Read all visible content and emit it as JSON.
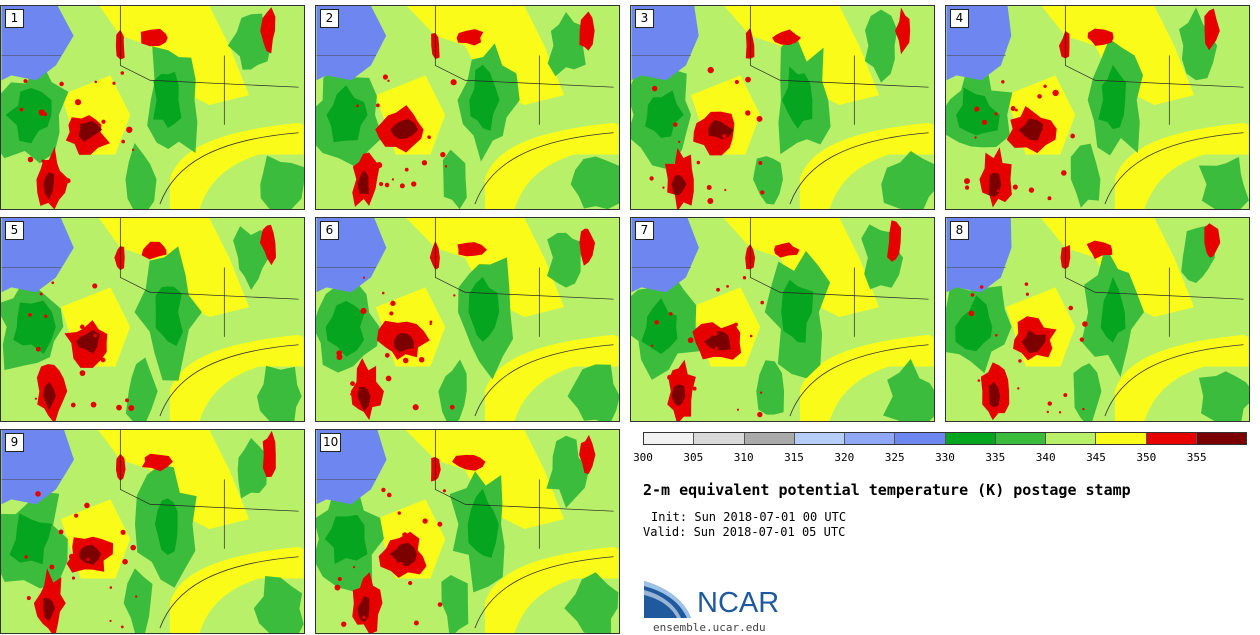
{
  "panels": [
    {
      "label": "1"
    },
    {
      "label": "2"
    },
    {
      "label": "3"
    },
    {
      "label": "4"
    },
    {
      "label": "5"
    },
    {
      "label": "6"
    },
    {
      "label": "7"
    },
    {
      "label": "8"
    },
    {
      "label": "9"
    },
    {
      "label": "10"
    }
  ],
  "colorbar": {
    "colors": [
      "#f2f2f2",
      "#d9d9d9",
      "#aaaaaa",
      "#b5cdf7",
      "#8fa8f5",
      "#6e87f0",
      "#05a51f",
      "#3cbc3d",
      "#b8f06a",
      "#fbfb1a",
      "#e60000",
      "#7d0000"
    ],
    "ticks": [
      "300",
      "305",
      "310",
      "315",
      "320",
      "325",
      "330",
      "335",
      "340",
      "345",
      "350",
      "355"
    ]
  },
  "title": "2-m equivalent potential temperature (K) postage stamp",
  "init": "Init: Sun 2018-07-01 00 UTC",
  "valid": "Valid: Sun 2018-07-01 05 UTC",
  "logo": {
    "text": "NCAR",
    "site": "ensemble.ucar.edu",
    "brand_color": "#1f5a9e"
  },
  "palette": {
    "cold_blue": "#6e87f0",
    "dark_green": "#05a51f",
    "green": "#3cbc3d",
    "light_green": "#b8f06a",
    "yellow": "#fbfb1a",
    "red": "#e60000",
    "dark_red": "#7d0000"
  }
}
